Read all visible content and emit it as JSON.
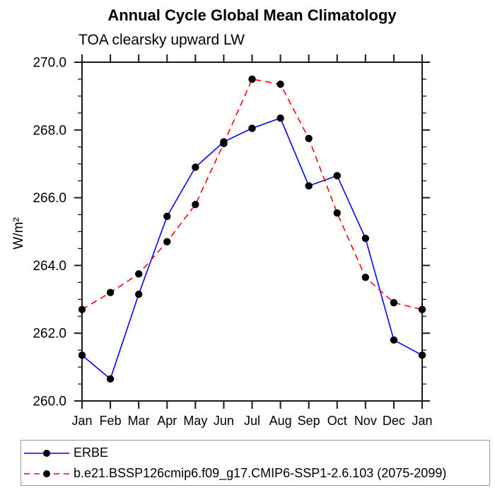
{
  "title": "Annual Cycle Global Mean Climatology",
  "subtitle": "TOA clearsky upward LW",
  "chart_data": {
    "type": "line",
    "categories": [
      "Jan",
      "Feb",
      "Mar",
      "Apr",
      "May",
      "Jun",
      "Jul",
      "Aug",
      "Sep",
      "Oct",
      "Nov",
      "Dec",
      "Jan"
    ],
    "ylabel": "W/m²",
    "ylim": [
      260.0,
      270.0
    ],
    "ytick_interval": 2.0,
    "yminor_interval": 0.5,
    "ytick_label_format": "one-decimal",
    "grid": false,
    "legend_position": "bottom-left-box",
    "axis_color": "#1a1a1a",
    "series": [
      {
        "name": "ERBE",
        "color": "#0000ff",
        "line_style": "solid",
        "marker": "filled-circle",
        "marker_color": "#000000",
        "values": [
          261.35,
          260.65,
          263.15,
          265.45,
          266.9,
          267.65,
          268.05,
          268.35,
          266.35,
          266.65,
          264.8,
          261.8,
          261.35
        ]
      },
      {
        "name": "b.e21.BSSP126cmip6.f09_g17.CMIP6-SSP1-2.6.103 (2075-2099)",
        "color": "#ff0000",
        "line_style": "dashed",
        "marker": "filled-circle",
        "marker_color": "#000000",
        "values": [
          262.7,
          263.2,
          263.75,
          264.7,
          265.8,
          267.6,
          269.5,
          269.35,
          267.75,
          265.55,
          263.65,
          262.9,
          262.7
        ]
      }
    ]
  }
}
